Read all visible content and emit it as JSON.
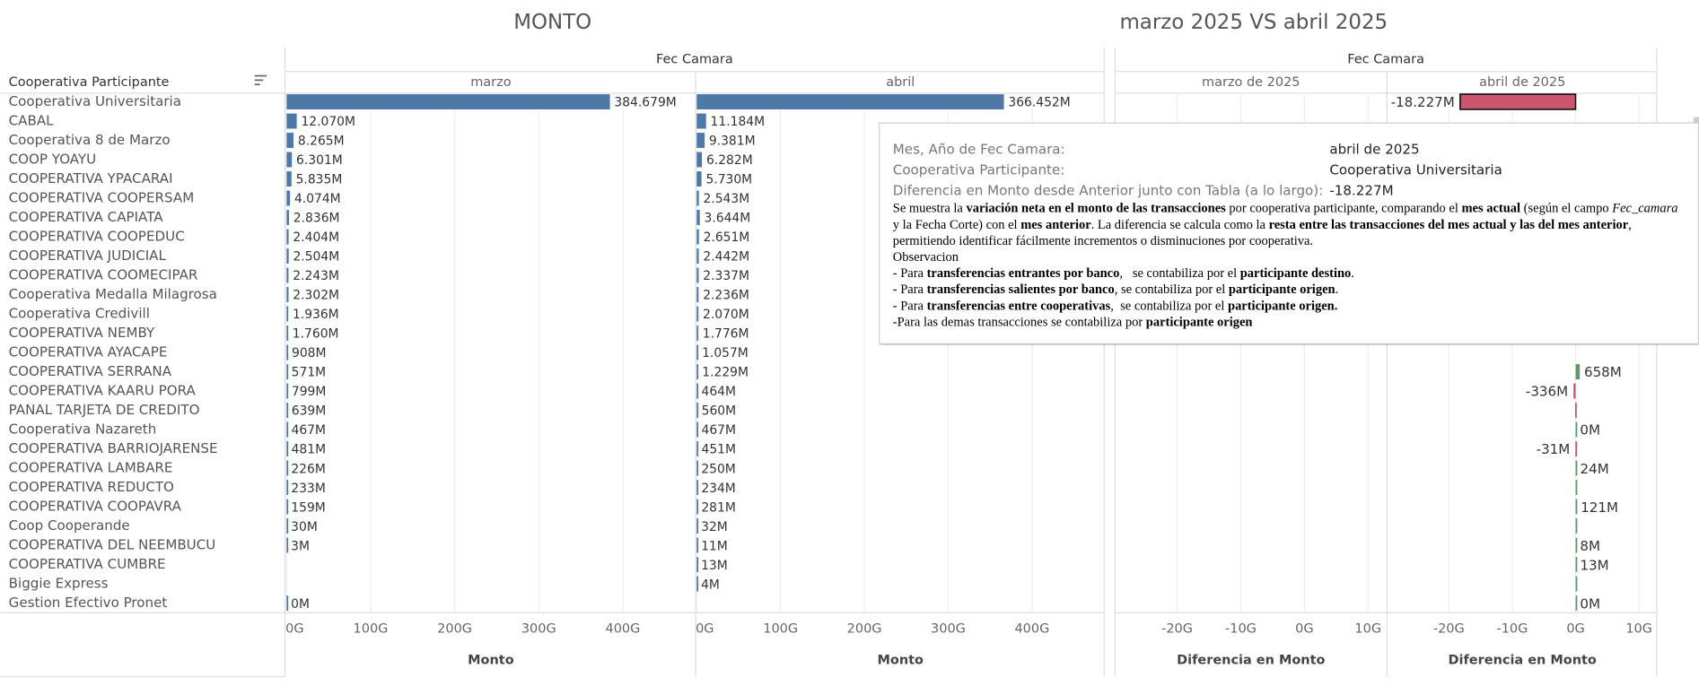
{
  "header": {
    "left_title": "MONTO",
    "right_title": "marzo 2025 VS abril 2025"
  },
  "chart_data": [
    {
      "type": "bar",
      "orientation": "horizontal",
      "column_header": "Fec Camara",
      "row_header": "Cooperativa Participante",
      "categories": [
        "Cooperativa Universitaria",
        "CABAL",
        "Cooperativa 8 de Marzo",
        "COOP YOAYU",
        "COOPERATIVA YPACARAI",
        "COOPERATIVA COOPERSAM",
        "COOPERATIVA CAPIATA",
        "COOPERATIVA COOPEDUC",
        "COOPERATIVA JUDICIAL",
        "COOPERATIVA COOMECIPAR",
        "Cooperativa Medalla Milagrosa",
        "Cooperativa Credivill",
        "COOPERATIVA NEMBY",
        "COOPERATIVA AYACAPE",
        "COOPERATIVA SERRANA",
        "COOPERATIVA KAARU PORA",
        "PANAL TARJETA DE CREDITO",
        "Cooperativa Nazareth",
        "COOPERATIVA BARRIOJARENSE",
        "COOPERATIVA LAMBARE",
        "COOPERATIVA REDUCTO",
        "COOPERATIVA COOPAVRA",
        "Coop Cooperande",
        "COOPERATIVA DEL NEEMBUCU",
        "COOPERATIVA CUMBRE",
        "Biggie Express",
        "Gestion Efectivo Pronet"
      ],
      "series": [
        {
          "name": "marzo",
          "color": "#4e79a7",
          "values": [
            384.679,
            12.07,
            8.265,
            6.301,
            5.835,
            4.074,
            2.836,
            2.404,
            2.504,
            2.243,
            2.302,
            1.936,
            1.76,
            0.908,
            0.571,
            0.799,
            0.639,
            0.467,
            0.481,
            0.226,
            0.233,
            0.159,
            0.03,
            0.003,
            null,
            null,
            0
          ],
          "value_labels": [
            "384.679M",
            "12.070M",
            "8.265M",
            "6.301M",
            "5.835M",
            "4.074M",
            "2.836M",
            "2.404M",
            "2.504M",
            "2.243M",
            "2.302M",
            "1.936M",
            "1.760M",
            "908M",
            "571M",
            "799M",
            "639M",
            "467M",
            "481M",
            "226M",
            "233M",
            "159M",
            "30M",
            "3M",
            null,
            null,
            "0M"
          ]
        },
        {
          "name": "abril",
          "color": "#4e79a7",
          "values": [
            366.452,
            11.184,
            9.381,
            6.282,
            5.73,
            2.543,
            3.644,
            2.651,
            2.442,
            2.337,
            2.236,
            2.07,
            1.776,
            1.057,
            1.229,
            0.464,
            0.56,
            0.467,
            0.451,
            0.25,
            0.234,
            0.281,
            0.032,
            0.011,
            0.013,
            0.004,
            null
          ],
          "value_labels": [
            "366.452M",
            "11.184M",
            "9.381M",
            "6.282M",
            "5.730M",
            "2.543M",
            "3.644M",
            "2.651M",
            "2.442M",
            "2.337M",
            "2.236M",
            "2.070M",
            "1.776M",
            "1.057M",
            "1.229M",
            "464M",
            "560M",
            "467M",
            "451M",
            "250M",
            "234M",
            "281M",
            "32M",
            "11M",
            "13M",
            "4M",
            null
          ]
        }
      ],
      "xlabel": "Monto",
      "xlim": [
        0,
        486
      ],
      "xticks": [
        {
          "value": 0,
          "label": "0G"
        },
        {
          "value": 100,
          "label": "100G"
        },
        {
          "value": 200,
          "label": "200G"
        },
        {
          "value": 300,
          "label": "300G"
        },
        {
          "value": 400,
          "label": "400G"
        }
      ],
      "grid": true
    },
    {
      "type": "bar",
      "orientation": "horizontal",
      "column_header": "Fec Camara",
      "positive_color": "#5b9a68",
      "negative_color": "#c9566e",
      "selected_index": 0,
      "series": [
        {
          "name": "marzo de 2025",
          "values": [
            null,
            null,
            null,
            null,
            null,
            null,
            null,
            null,
            null,
            null,
            null,
            null,
            null,
            null,
            null,
            null,
            null,
            null,
            null,
            null,
            null,
            null,
            null,
            null,
            null,
            null,
            null
          ],
          "value_labels": [
            null,
            null,
            null,
            null,
            null,
            null,
            null,
            null,
            null,
            null,
            null,
            null,
            null,
            null,
            null,
            null,
            null,
            null,
            null,
            null,
            null,
            null,
            null,
            null,
            null,
            null,
            null
          ]
        },
        {
          "name": "abril de 2025",
          "values": [
            -18.227,
            null,
            null,
            null,
            null,
            null,
            null,
            null,
            null,
            null,
            null,
            null,
            null,
            null,
            0.658,
            -0.336,
            -0.079,
            0,
            -0.031,
            0.024,
            0.001,
            0.121,
            0.002,
            0.008,
            0.013,
            0.004,
            0
          ],
          "value_labels": [
            "-18.227M",
            null,
            null,
            null,
            null,
            null,
            null,
            null,
            null,
            null,
            null,
            null,
            null,
            null,
            "658M",
            "-336M",
            null,
            "0M",
            "-31M",
            "24M",
            null,
            "121M",
            null,
            "8M",
            "13M",
            null,
            "0M"
          ]
        }
      ],
      "xlabel": "Diferencia en Monto",
      "xlim": [
        -29.6,
        12.8
      ],
      "xticks": [
        {
          "value": -20,
          "label": "-20G"
        },
        {
          "value": -10,
          "label": "-10G"
        },
        {
          "value": 0,
          "label": "0G"
        },
        {
          "value": 10,
          "label": "10G"
        }
      ],
      "grid": true
    }
  ],
  "tooltip": {
    "fields": [
      {
        "label": "Mes, Año de Fec Camara:",
        "value": "abril de 2025"
      },
      {
        "label": "Cooperativa Participante:",
        "value": "Cooperativa Universitaria"
      },
      {
        "label": "Diferencia en Monto desde Anterior junto con Tabla (a lo largo):",
        "value": "-18.227M"
      }
    ],
    "paragraphs": [
      [
        {
          "text": "Se muestra la "
        },
        {
          "text": "variación neta en el monto de las transacciones",
          "bold": true
        },
        {
          "text": " por cooperativa participante, comparando el "
        },
        {
          "text": "mes actual",
          "bold": true
        },
        {
          "text": " (según el campo "
        },
        {
          "text": "Fec_camara",
          "italic": true
        },
        {
          "text": " y la Fecha Corte) con el "
        },
        {
          "text": "mes anterior",
          "bold": true
        },
        {
          "text": ". La diferencia se calcula como la "
        },
        {
          "text": "resta entre las transacciones del mes actual y las del mes anterior",
          "bold": true
        },
        {
          "text": ", permitiendo identificar fácilmente incrementos o disminuciones por cooperativa."
        }
      ],
      [
        {
          "text": "Observacion"
        }
      ],
      [
        {
          "text": "- Para "
        },
        {
          "text": "transferencias entrantes por banco",
          "bold": true
        },
        {
          "text": ",   se contabiliza por el "
        },
        {
          "text": "participante destino",
          "bold": true
        },
        {
          "text": "."
        }
      ],
      [
        {
          "text": "- Para "
        },
        {
          "text": "transferencias salientes por banco",
          "bold": true
        },
        {
          "text": ", se contabiliza por el "
        },
        {
          "text": "participante origen",
          "bold": true
        },
        {
          "text": "."
        }
      ],
      [
        {
          "text": "- Para "
        },
        {
          "text": "transferencias entre cooperativas",
          "bold": true
        },
        {
          "text": ",  se contabiliza por el "
        },
        {
          "text": "participante origen.",
          "bold": true
        }
      ],
      [
        {
          "text": "-Para las demas transacciones se contabiliza por "
        },
        {
          "text": "participante origen",
          "bold": true
        }
      ]
    ]
  }
}
